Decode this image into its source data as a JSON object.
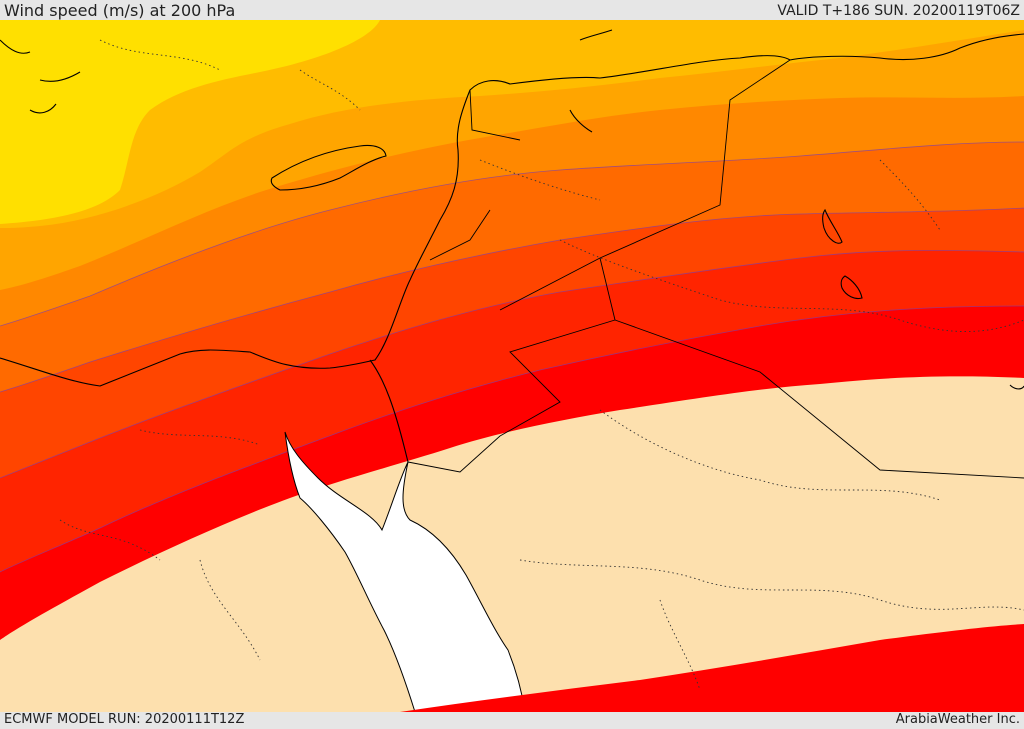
{
  "header": {
    "title": "Wind speed (m/s) at 200 hPa",
    "valid": "VALID T+186 SUN. 20200119T06Z"
  },
  "footer": {
    "model_run": "ECMWF MODEL RUN: 20200111T12Z",
    "credit": "ArabiaWeather Inc."
  },
  "colors": {
    "band_1": "#ffe000",
    "band_2": "#ffbc00",
    "band_3": "#ffa500",
    "band_4": "#ff8800",
    "band_5": "#ff6a00",
    "band_6": "#ff4500",
    "band_7": "#ff2400",
    "band_8": "#ff0000",
    "below_threshold": "#fde0ae",
    "sea": "#ffffff",
    "coast": "#000000",
    "contour": "#7a3fb0"
  }
}
